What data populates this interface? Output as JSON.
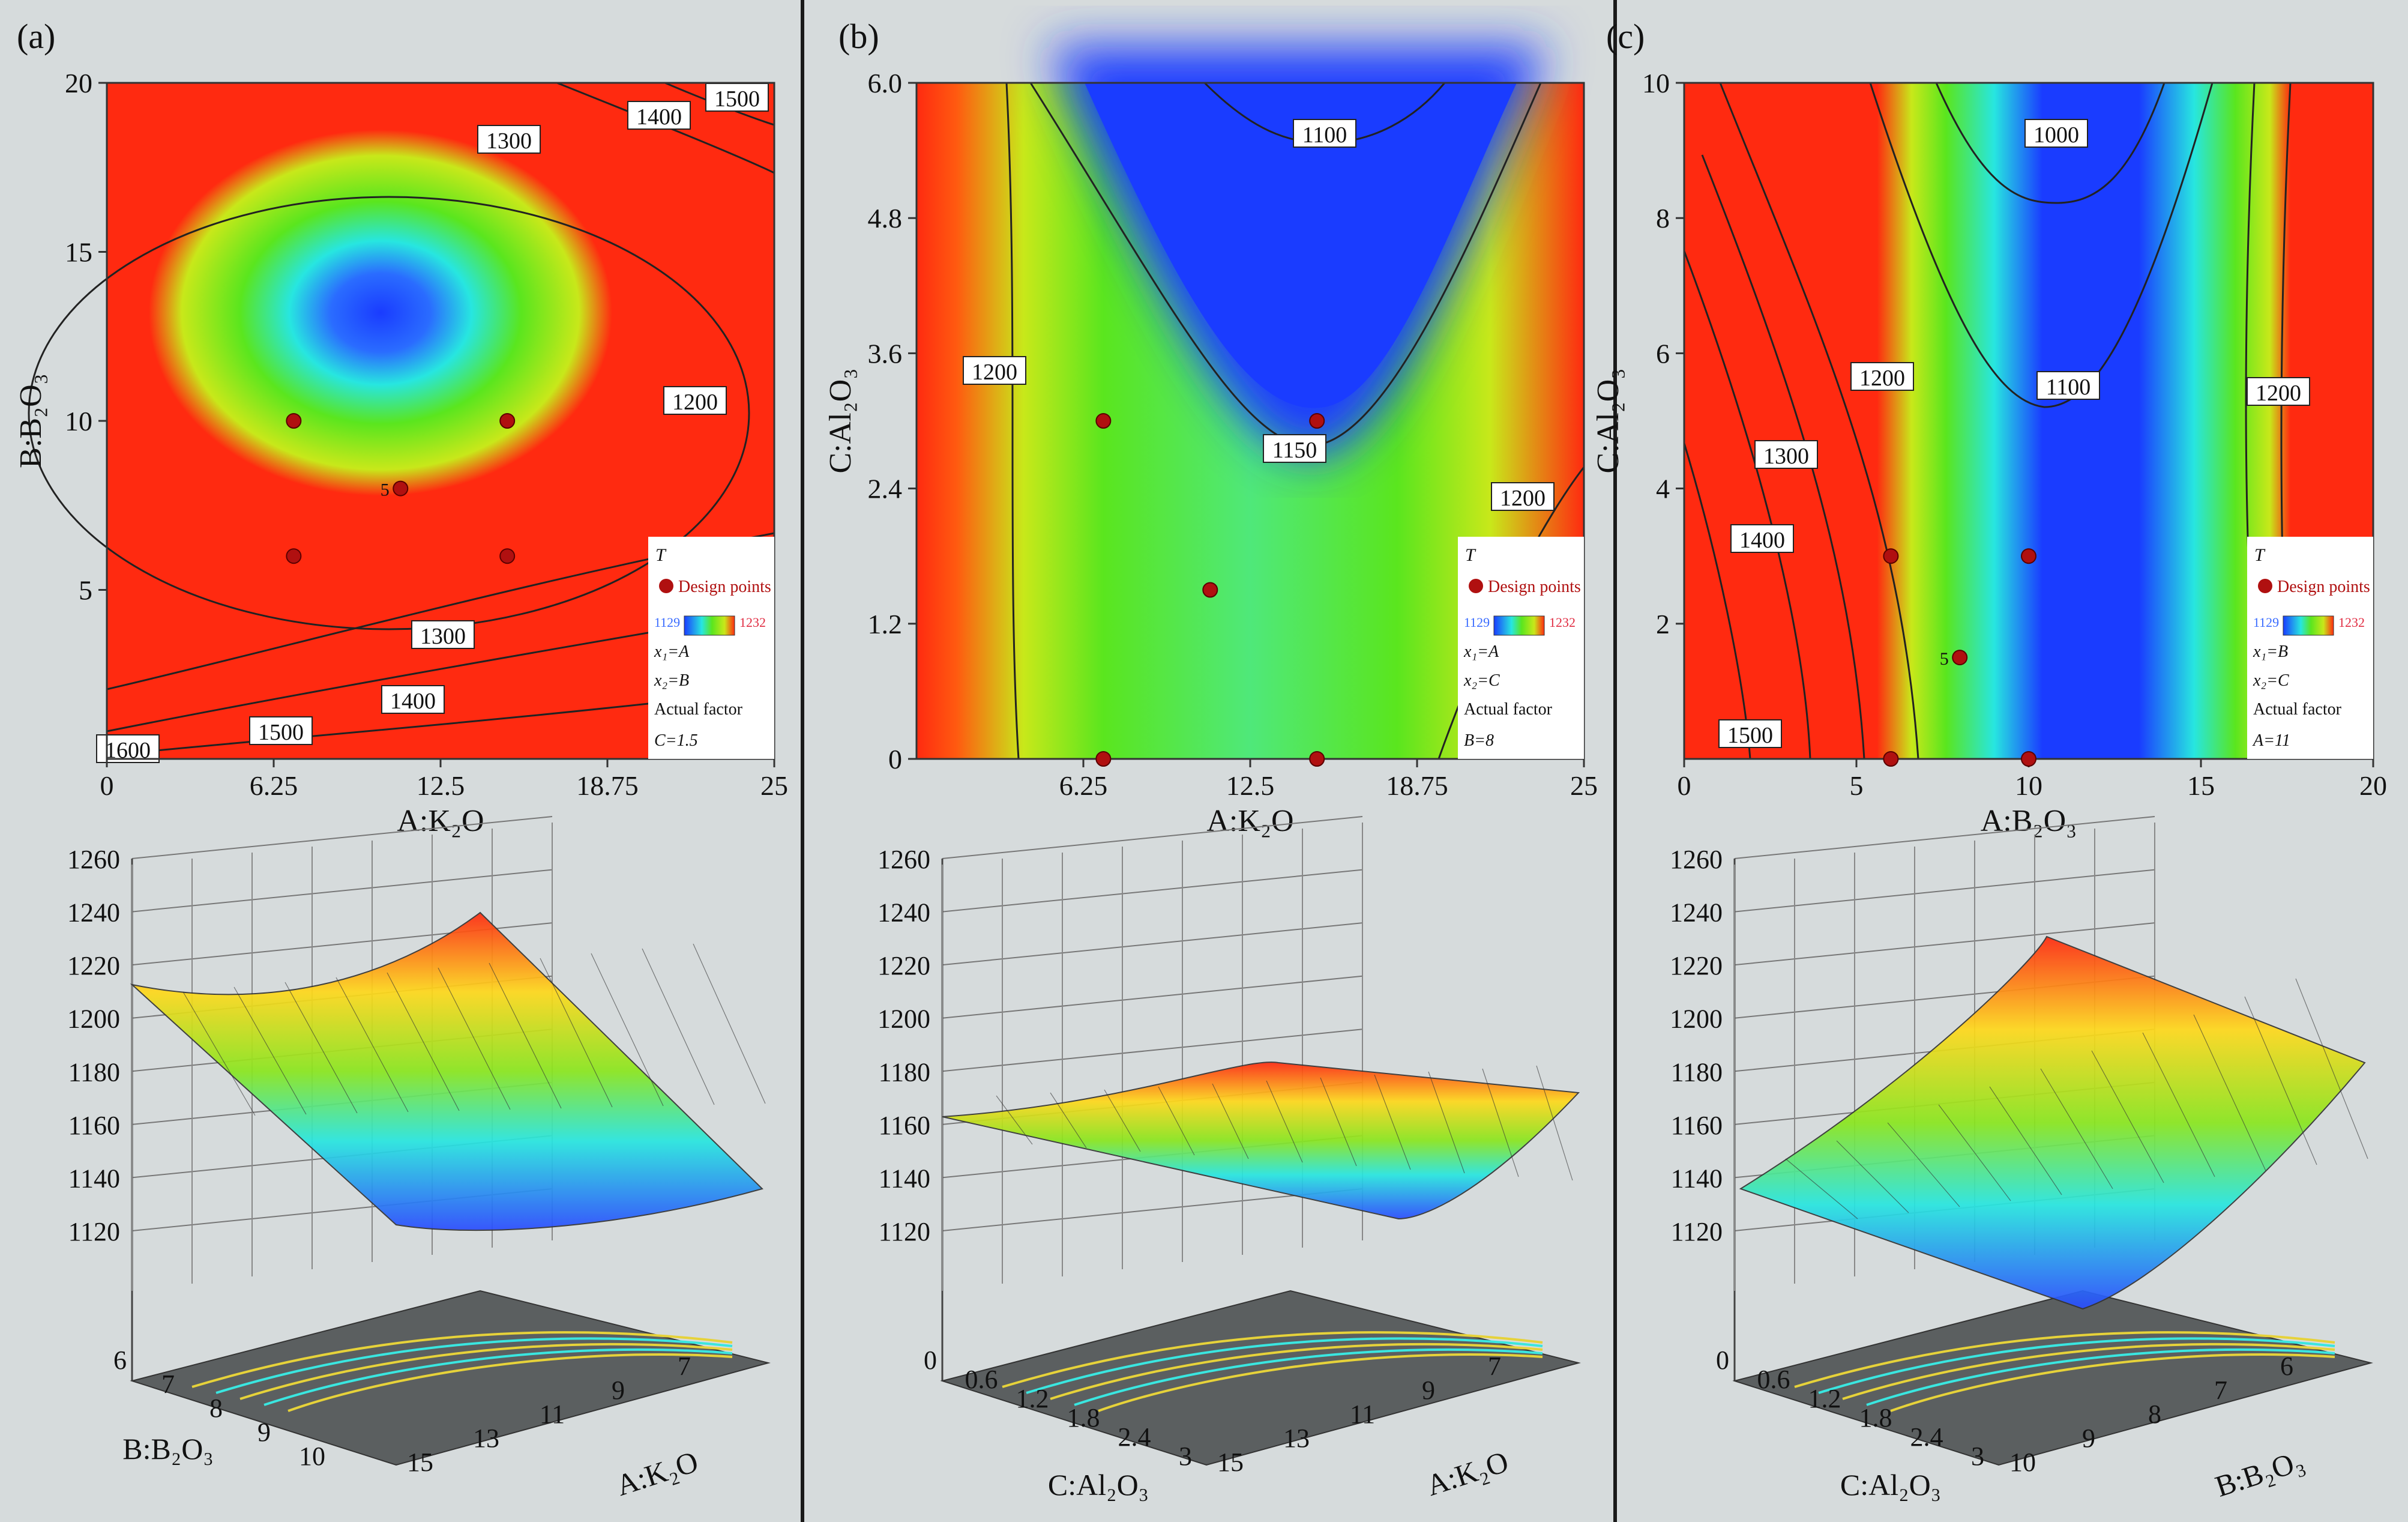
{
  "colors": {
    "background": "#d6dbdc",
    "low": "#1a3cff",
    "mid": "#5ae61e",
    "high": "#ff2a10",
    "point_dark": "#b01010",
    "point_light": "#f4b8c8"
  },
  "panels": [
    {
      "label": "(a)",
      "contour": {
        "type": "contour",
        "xlabel": "A:K₂O",
        "ylabel": "B:B₂O₃",
        "xlim": [
          0,
          25
        ],
        "ylim": [
          0,
          20
        ],
        "xticks": [
          "0",
          "6.25",
          "12.5",
          "18.75",
          "25"
        ],
        "yticks": [
          "5",
          "10",
          "15",
          "20"
        ],
        "contour_labels": [
          "1500",
          "1400",
          "1300",
          "1200",
          "1300",
          "1400",
          "1500",
          "1600"
        ],
        "design_points": [
          [
            7,
            10
          ],
          [
            15,
            10
          ],
          [
            11,
            8
          ],
          [
            7,
            6
          ],
          [
            15,
            6
          ]
        ],
        "design_point_count_label": "5",
        "legend": {
          "title": "T",
          "points_label": "Design points",
          "range_min": "1129",
          "range_max": "1232",
          "x1": "x₁=A",
          "x2": "x₂=B",
          "actual_factor": "Actual factor",
          "fixed": "C=1.5"
        }
      },
      "surface": {
        "type": "surface",
        "zlabel": "",
        "zticks": [
          "1120",
          "1140",
          "1160",
          "1180",
          "1200",
          "1220",
          "1240",
          "1260"
        ],
        "axis1_label": "B:B₂O₃",
        "axis1_ticks": [
          "6",
          "7",
          "8",
          "9",
          "10"
        ],
        "axis2_label": "A:K₂O",
        "axis2_ticks": [
          "15",
          "13",
          "11",
          "9",
          "7"
        ]
      }
    },
    {
      "label": "(b)",
      "contour": {
        "type": "contour",
        "xlabel": "A:K₂O",
        "ylabel": "C:Al₂O₃",
        "xlim": [
          0,
          25
        ],
        "ylim": [
          0,
          6
        ],
        "xticks": [
          "6.25",
          "12.5",
          "18.75",
          "25"
        ],
        "yticks": [
          "0",
          "1.2",
          "2.4",
          "3.6",
          "4.8",
          "6.0"
        ],
        "contour_labels": [
          "1100",
          "1200",
          "1150",
          "1200"
        ],
        "design_points": [
          [
            7,
            3
          ],
          [
            15,
            3
          ],
          [
            11,
            1.5
          ],
          [
            7,
            0
          ],
          [
            15,
            0
          ]
        ],
        "legend": {
          "title": "T",
          "points_label": "Design points",
          "range_min": "1129",
          "range_max": "1232",
          "x1": "x₁=A",
          "x2": "x₂=C",
          "actual_factor": "Actual factor",
          "fixed": "B=8"
        }
      },
      "surface": {
        "type": "surface",
        "zlabel": "",
        "zticks": [
          "1120",
          "1140",
          "1160",
          "1180",
          "1200",
          "1220",
          "1240",
          "1260"
        ],
        "axis1_label": "C:Al₂O₃",
        "axis1_ticks": [
          "0",
          "0.6",
          "1.2",
          "1.8",
          "2.4",
          "3"
        ],
        "axis2_label": "A:K₂O",
        "axis2_ticks": [
          "15",
          "13",
          "11",
          "9",
          "7"
        ]
      }
    },
    {
      "label": "(c)",
      "contour": {
        "type": "contour",
        "xlabel": "A:B₂O₃",
        "ylabel": "C:Al₂O₃",
        "xlim": [
          0,
          20
        ],
        "ylim": [
          0,
          10
        ],
        "xticks": [
          "0",
          "5",
          "10",
          "15",
          "20"
        ],
        "yticks": [
          "2",
          "4",
          "6",
          "8",
          "10"
        ],
        "contour_labels": [
          "1000",
          "1200",
          "1100",
          "1300",
          "1200",
          "1300",
          "1400",
          "1500"
        ],
        "design_points": [
          [
            6,
            3
          ],
          [
            10,
            3
          ],
          [
            8,
            1.5
          ],
          [
            6,
            0
          ],
          [
            10,
            0
          ]
        ],
        "design_point_count_label": "5",
        "legend": {
          "title": "T",
          "points_label": "Design points",
          "range_min": "1129",
          "range_max": "1232",
          "x1": "x₁=B",
          "x2": "x₂=C",
          "actual_factor": "Actual factor",
          "fixed": "A=11"
        }
      },
      "surface": {
        "type": "surface",
        "zlabel": "",
        "zticks": [
          "1120",
          "1140",
          "1160",
          "1180",
          "1200",
          "1220",
          "1240",
          "1260"
        ],
        "axis1_label": "C:Al₂O₃",
        "axis1_ticks": [
          "0",
          "0.6",
          "1.2",
          "1.8",
          "2.4",
          "3"
        ],
        "axis2_label": "B:B₂O₃",
        "axis2_ticks": [
          "10",
          "9",
          "8",
          "7",
          "6"
        ]
      }
    }
  ],
  "chart_data": [
    {
      "type": "contour",
      "panel": "(a)",
      "xlabel": "A:K₂O",
      "ylabel": "B:B₂O₃",
      "xlim": [
        0,
        25
      ],
      "ylim": [
        0,
        20
      ],
      "contour_levels": [
        1200,
        1300,
        1400,
        1500,
        1600
      ],
      "design_points": [
        [
          7,
          10
        ],
        [
          15,
          10
        ],
        [
          11,
          8
        ],
        [
          7,
          6
        ],
        [
          15,
          6
        ]
      ],
      "fixed_factor": "C=1.5",
      "color_range": [
        1129,
        1232
      ]
    },
    {
      "type": "surface",
      "panel": "(a)",
      "zlim": [
        1120,
        1260
      ],
      "axis1": "B:B₂O₃",
      "axis1_range": [
        6,
        10
      ],
      "axis2": "A:K₂O",
      "axis2_range": [
        7,
        15
      ]
    },
    {
      "type": "contour",
      "panel": "(b)",
      "xlabel": "A:K₂O",
      "ylabel": "C:Al₂O₃",
      "xlim": [
        0,
        25
      ],
      "ylim": [
        0,
        6
      ],
      "contour_levels": [
        1100,
        1150,
        1200
      ],
      "design_points": [
        [
          7,
          3
        ],
        [
          15,
          3
        ],
        [
          11,
          1.5
        ],
        [
          7,
          0
        ],
        [
          15,
          0
        ]
      ],
      "fixed_factor": "B=8",
      "color_range": [
        1129,
        1232
      ]
    },
    {
      "type": "surface",
      "panel": "(b)",
      "zlim": [
        1120,
        1260
      ],
      "axis1": "C:Al₂O₃",
      "axis1_range": [
        0,
        3
      ],
      "axis2": "A:K₂O",
      "axis2_range": [
        7,
        15
      ]
    },
    {
      "type": "contour",
      "panel": "(c)",
      "xlabel": "A:B₂O₃",
      "ylabel": "C:Al₂O₃",
      "xlim": [
        0,
        20
      ],
      "ylim": [
        0,
        10
      ],
      "contour_levels": [
        1000,
        1100,
        1200,
        1300,
        1400,
        1500
      ],
      "design_points": [
        [
          6,
          3
        ],
        [
          10,
          3
        ],
        [
          8,
          1.5
        ],
        [
          6,
          0
        ],
        [
          10,
          0
        ]
      ],
      "fixed_factor": "A=11",
      "color_range": [
        1129,
        1232
      ]
    },
    {
      "type": "surface",
      "panel": "(c)",
      "zlim": [
        1120,
        1260
      ],
      "axis1": "C:Al₂O₃",
      "axis1_range": [
        0,
        3
      ],
      "axis2": "B:B₂O₃",
      "axis2_range": [
        6,
        10
      ]
    }
  ]
}
